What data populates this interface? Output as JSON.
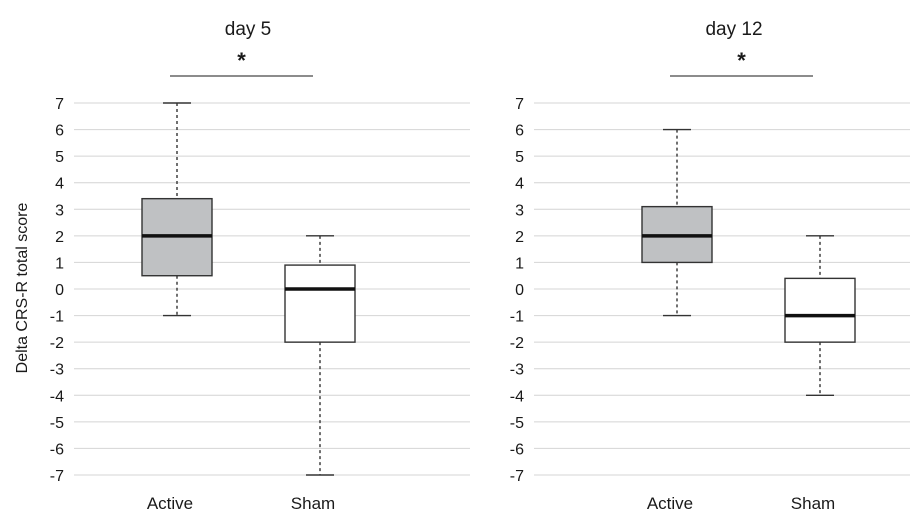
{
  "y_axis_label": "Delta CRS-R total score",
  "chart_data": [
    {
      "type": "box",
      "title": "day 5",
      "xlabel": "",
      "ylabel": "Delta CRS-R total score",
      "ylim": [
        -7,
        7
      ],
      "yticks": [
        7,
        6,
        5,
        4,
        3,
        2,
        1,
        0,
        -1,
        -2,
        -3,
        -4,
        -5,
        -6,
        -7
      ],
      "grid": true,
      "categories": [
        "Active",
        "Sham"
      ],
      "boxes": [
        {
          "category": "Active",
          "min": -1,
          "q1": 0.5,
          "median": 2,
          "q3": 3.4,
          "max": 7,
          "fill": "#bfc1c3"
        },
        {
          "category": "Sham",
          "min": -7,
          "q1": -2,
          "median": 0,
          "q3": 0.9,
          "max": 2,
          "fill": "#ffffff"
        }
      ],
      "significance": {
        "between": [
          "Active",
          "Sham"
        ],
        "label": "*"
      }
    },
    {
      "type": "box",
      "title": "day 12",
      "xlabel": "",
      "ylabel": "",
      "ylim": [
        -7,
        7
      ],
      "yticks": [
        7,
        6,
        5,
        4,
        3,
        2,
        1,
        0,
        -1,
        -2,
        -3,
        -4,
        -5,
        -6,
        -7
      ],
      "grid": true,
      "categories": [
        "Active",
        "Sham"
      ],
      "boxes": [
        {
          "category": "Active",
          "min": -1,
          "q1": 1,
          "median": 2,
          "q3": 3.1,
          "max": 6,
          "fill": "#bfc1c3"
        },
        {
          "category": "Sham",
          "min": -4,
          "q1": -2,
          "median": -1,
          "q3": 0.4,
          "max": 2,
          "fill": "#ffffff"
        }
      ],
      "significance": {
        "between": [
          "Active",
          "Sham"
        ],
        "label": "*"
      }
    }
  ]
}
